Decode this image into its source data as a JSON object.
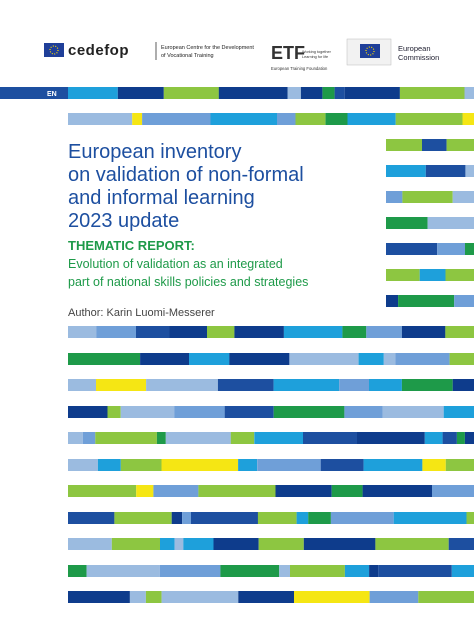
{
  "header": {
    "cedefop": "cedefop",
    "cedefop_name": [
      "European Centre for the Development",
      "of Vocational Training"
    ],
    "etf": "ETF",
    "etf_tagline": [
      "Working together",
      "Learning for life"
    ],
    "etf_name": "European Training Foundation",
    "commission": [
      "European",
      "Commission"
    ]
  },
  "language": "EN",
  "title": [
    "European inventory",
    "on validation of non-formal",
    "and informal learning",
    "2023 update"
  ],
  "report_label": "THEMATIC REPORT:",
  "subtitle": [
    "Evolution of validation as an integrated",
    "part of national skills policies and strategies"
  ],
  "author": "Author: Karin Luomi-Messerer"
}
